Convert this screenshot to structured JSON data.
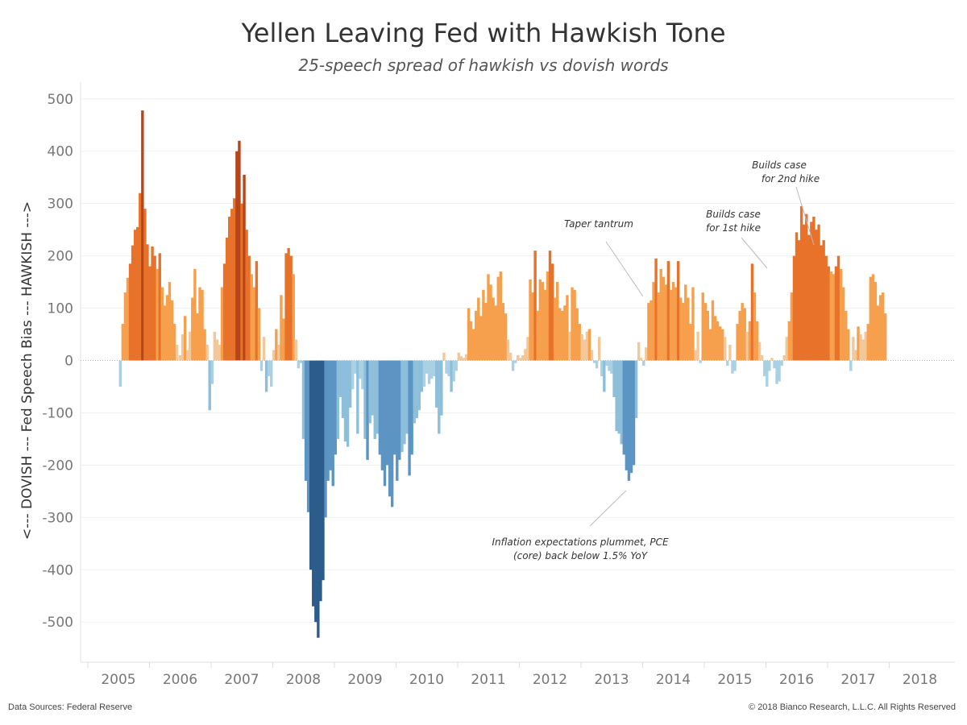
{
  "header": {
    "title": "Yellen Leaving Fed with Hawkish Tone",
    "subtitle": "25-speech spread of hawkish vs dovish words"
  },
  "footer": {
    "source": "Data Sources: Federal Reserve",
    "copyright": "© 2018 Bianco Research, L.L.C. All Rights Reserved"
  },
  "colors": {
    "hawkish_dark": "#b7451a",
    "hawkish_mid": "#e8722a",
    "hawkish_light": "#f6a04d",
    "hawkish_pale": "#f2c79a",
    "dovish_pale": "#a9d0e3",
    "dovish_light": "#8dbfda",
    "dovish_mid": "#5c94c4",
    "dovish_dark": "#2b5c8c"
  },
  "chart_data": {
    "type": "bar",
    "title": "Yellen Leaving Fed with Hawkish Tone",
    "subtitle": "25-speech spread of hawkish vs dovish words",
    "ylabel": "<--- DOVISH --- Fed Speech Bias --- HAWKISH --->",
    "xlabel": "",
    "ylim": [
      -580,
      500
    ],
    "xlim": [
      2004.7,
      2018.3
    ],
    "yticks": [
      500,
      400,
      300,
      200,
      100,
      0,
      -100,
      -200,
      -300,
      -400,
      -500
    ],
    "xticks": [
      2005,
      2006,
      2007,
      2008,
      2009,
      2010,
      2011,
      2012,
      2013,
      2014,
      2015,
      2016,
      2017,
      2018
    ],
    "grid": true,
    "legend": "none",
    "points": [
      [
        2005.03,
        -50
      ],
      [
        2005.07,
        70
      ],
      [
        2005.11,
        130
      ],
      [
        2005.15,
        158
      ],
      [
        2005.19,
        185
      ],
      [
        2005.23,
        220
      ],
      [
        2005.27,
        250
      ],
      [
        2005.31,
        255
      ],
      [
        2005.35,
        320
      ],
      [
        2005.39,
        478
      ],
      [
        2005.43,
        290
      ],
      [
        2005.47,
        222
      ],
      [
        2005.51,
        180
      ],
      [
        2005.55,
        218
      ],
      [
        2005.59,
        200
      ],
      [
        2005.63,
        175
      ],
      [
        2005.67,
        205
      ],
      [
        2005.71,
        140
      ],
      [
        2005.75,
        105
      ],
      [
        2005.79,
        125
      ],
      [
        2005.83,
        150
      ],
      [
        2005.87,
        115
      ],
      [
        2005.91,
        70
      ],
      [
        2005.95,
        30
      ],
      [
        2006.0,
        10
      ],
      [
        2006.04,
        50
      ],
      [
        2006.08,
        85
      ],
      [
        2006.12,
        20
      ],
      [
        2006.16,
        55
      ],
      [
        2006.2,
        120
      ],
      [
        2006.24,
        175
      ],
      [
        2006.28,
        90
      ],
      [
        2006.32,
        140
      ],
      [
        2006.36,
        135
      ],
      [
        2006.4,
        60
      ],
      [
        2006.44,
        30
      ],
      [
        2006.48,
        -95
      ],
      [
        2006.52,
        -45
      ],
      [
        2006.56,
        55
      ],
      [
        2006.6,
        40
      ],
      [
        2006.64,
        30
      ],
      [
        2006.68,
        140
      ],
      [
        2006.72,
        185
      ],
      [
        2006.76,
        235
      ],
      [
        2006.8,
        275
      ],
      [
        2006.84,
        290
      ],
      [
        2006.88,
        310
      ],
      [
        2006.92,
        400
      ],
      [
        2006.96,
        420
      ],
      [
        2007.0,
        300
      ],
      [
        2007.04,
        355
      ],
      [
        2007.08,
        250
      ],
      [
        2007.12,
        200
      ],
      [
        2007.16,
        165
      ],
      [
        2007.2,
        140
      ],
      [
        2007.24,
        190
      ],
      [
        2007.28,
        100
      ],
      [
        2007.32,
        -20
      ],
      [
        2007.36,
        45
      ],
      [
        2007.4,
        -60
      ],
      [
        2007.44,
        -30
      ],
      [
        2007.48,
        -50
      ],
      [
        2007.52,
        20
      ],
      [
        2007.56,
        60
      ],
      [
        2007.6,
        30
      ],
      [
        2007.64,
        125
      ],
      [
        2007.68,
        80
      ],
      [
        2007.72,
        205
      ],
      [
        2007.76,
        215
      ],
      [
        2007.8,
        200
      ],
      [
        2007.84,
        165
      ],
      [
        2007.88,
        40
      ],
      [
        2007.92,
        -15
      ],
      [
        2007.96,
        -5
      ],
      [
        2008.0,
        -150
      ],
      [
        2008.04,
        -230
      ],
      [
        2008.08,
        -290
      ],
      [
        2008.12,
        -400
      ],
      [
        2008.16,
        -470
      ],
      [
        2008.2,
        -500
      ],
      [
        2008.24,
        -530
      ],
      [
        2008.28,
        -460
      ],
      [
        2008.32,
        -420
      ],
      [
        2008.36,
        -300
      ],
      [
        2008.4,
        -230
      ],
      [
        2008.44,
        -210
      ],
      [
        2008.48,
        -240
      ],
      [
        2008.52,
        -180
      ],
      [
        2008.56,
        -150
      ],
      [
        2008.6,
        -70
      ],
      [
        2008.64,
        -110
      ],
      [
        2008.68,
        -155
      ],
      [
        2008.72,
        -165
      ],
      [
        2008.76,
        -90
      ],
      [
        2008.8,
        -55
      ],
      [
        2008.84,
        -25
      ],
      [
        2008.88,
        -140
      ],
      [
        2008.92,
        -35
      ],
      [
        2008.96,
        -55
      ],
      [
        2009.0,
        -150
      ],
      [
        2009.04,
        -190
      ],
      [
        2009.08,
        -120
      ],
      [
        2009.12,
        -105
      ],
      [
        2009.16,
        -150
      ],
      [
        2009.2,
        -140
      ],
      [
        2009.24,
        -180
      ],
      [
        2009.28,
        -210
      ],
      [
        2009.32,
        -240
      ],
      [
        2009.36,
        -200
      ],
      [
        2009.4,
        -260
      ],
      [
        2009.44,
        -280
      ],
      [
        2009.48,
        -180
      ],
      [
        2009.52,
        -230
      ],
      [
        2009.56,
        -190
      ],
      [
        2009.6,
        -175
      ],
      [
        2009.64,
        -160
      ],
      [
        2009.68,
        -140
      ],
      [
        2009.72,
        -220
      ],
      [
        2009.76,
        -180
      ],
      [
        2009.8,
        -120
      ],
      [
        2009.84,
        -110
      ],
      [
        2009.88,
        -95
      ],
      [
        2009.92,
        -60
      ],
      [
        2009.96,
        -50
      ],
      [
        2010.0,
        -25
      ],
      [
        2010.04,
        -45
      ],
      [
        2010.08,
        -35
      ],
      [
        2010.12,
        -30
      ],
      [
        2010.16,
        -90
      ],
      [
        2010.2,
        -140
      ],
      [
        2010.24,
        -105
      ],
      [
        2010.28,
        15
      ],
      [
        2010.32,
        -25
      ],
      [
        2010.36,
        -30
      ],
      [
        2010.4,
        -60
      ],
      [
        2010.44,
        -40
      ],
      [
        2010.48,
        -20
      ],
      [
        2010.52,
        15
      ],
      [
        2010.56,
        8
      ],
      [
        2010.6,
        5
      ],
      [
        2010.64,
        12
      ],
      [
        2010.68,
        100
      ],
      [
        2010.72,
        75
      ],
      [
        2010.76,
        60
      ],
      [
        2010.8,
        95
      ],
      [
        2010.84,
        120
      ],
      [
        2010.88,
        85
      ],
      [
        2010.92,
        135
      ],
      [
        2010.96,
        110
      ],
      [
        2011.0,
        165
      ],
      [
        2011.04,
        145
      ],
      [
        2011.08,
        120
      ],
      [
        2011.12,
        105
      ],
      [
        2011.16,
        160
      ],
      [
        2011.2,
        170
      ],
      [
        2011.24,
        110
      ],
      [
        2011.28,
        90
      ],
      [
        2011.32,
        40
      ],
      [
        2011.36,
        15
      ],
      [
        2011.4,
        -20
      ],
      [
        2011.44,
        -5
      ],
      [
        2011.48,
        10
      ],
      [
        2011.52,
        5
      ],
      [
        2011.56,
        10
      ],
      [
        2011.6,
        22
      ],
      [
        2011.64,
        45
      ],
      [
        2011.68,
        155
      ],
      [
        2011.72,
        130
      ],
      [
        2011.76,
        210
      ],
      [
        2011.8,
        95
      ],
      [
        2011.84,
        155
      ],
      [
        2011.88,
        150
      ],
      [
        2011.92,
        135
      ],
      [
        2011.96,
        170
      ],
      [
        2012.0,
        210
      ],
      [
        2012.04,
        185
      ],
      [
        2012.08,
        120
      ],
      [
        2012.12,
        150
      ],
      [
        2012.16,
        100
      ],
      [
        2012.2,
        95
      ],
      [
        2012.24,
        105
      ],
      [
        2012.28,
        125
      ],
      [
        2012.32,
        55
      ],
      [
        2012.36,
        140
      ],
      [
        2012.4,
        135
      ],
      [
        2012.44,
        100
      ],
      [
        2012.48,
        70
      ],
      [
        2012.52,
        50
      ],
      [
        2012.56,
        40
      ],
      [
        2012.6,
        55
      ],
      [
        2012.64,
        60
      ],
      [
        2012.68,
        20
      ],
      [
        2012.72,
        -5
      ],
      [
        2012.76,
        -15
      ],
      [
        2012.8,
        45
      ],
      [
        2012.84,
        -30
      ],
      [
        2012.88,
        -60
      ],
      [
        2012.92,
        -10
      ],
      [
        2012.96,
        -20
      ],
      [
        2013.0,
        -25
      ],
      [
        2013.04,
        -70
      ],
      [
        2013.08,
        -135
      ],
      [
        2013.12,
        -140
      ],
      [
        2013.16,
        -160
      ],
      [
        2013.2,
        -180
      ],
      [
        2013.24,
        -210
      ],
      [
        2013.28,
        -230
      ],
      [
        2013.32,
        -215
      ],
      [
        2013.36,
        -200
      ],
      [
        2013.4,
        -110
      ],
      [
        2013.44,
        35
      ],
      [
        2013.48,
        5
      ],
      [
        2013.52,
        -10
      ],
      [
        2013.56,
        25
      ],
      [
        2013.6,
        110
      ],
      [
        2013.64,
        115
      ],
      [
        2013.68,
        150
      ],
      [
        2013.72,
        195
      ],
      [
        2013.76,
        130
      ],
      [
        2013.8,
        175
      ],
      [
        2013.84,
        160
      ],
      [
        2013.88,
        145
      ],
      [
        2013.92,
        190
      ],
      [
        2013.96,
        135
      ],
      [
        2014.0,
        150
      ],
      [
        2014.04,
        140
      ],
      [
        2014.08,
        190
      ],
      [
        2014.12,
        120
      ],
      [
        2014.16,
        110
      ],
      [
        2014.2,
        145
      ],
      [
        2014.24,
        120
      ],
      [
        2014.28,
        70
      ],
      [
        2014.32,
        140
      ],
      [
        2014.36,
        20
      ],
      [
        2014.4,
        55
      ],
      [
        2014.44,
        -5
      ],
      [
        2014.48,
        130
      ],
      [
        2014.52,
        110
      ],
      [
        2014.56,
        95
      ],
      [
        2014.6,
        60
      ],
      [
        2014.64,
        115
      ],
      [
        2014.68,
        85
      ],
      [
        2014.72,
        75
      ],
      [
        2014.76,
        65
      ],
      [
        2014.8,
        60
      ],
      [
        2014.84,
        45
      ],
      [
        2014.88,
        -10
      ],
      [
        2014.92,
        30
      ],
      [
        2014.96,
        -25
      ],
      [
        2015.0,
        -20
      ],
      [
        2015.04,
        70
      ],
      [
        2015.08,
        95
      ],
      [
        2015.12,
        110
      ],
      [
        2015.16,
        100
      ],
      [
        2015.2,
        55
      ],
      [
        2015.24,
        75
      ],
      [
        2015.28,
        185
      ],
      [
        2015.32,
        130
      ],
      [
        2015.36,
        75
      ],
      [
        2015.4,
        35
      ],
      [
        2015.44,
        10
      ],
      [
        2015.48,
        -30
      ],
      [
        2015.52,
        -50
      ],
      [
        2015.56,
        -20
      ],
      [
        2015.6,
        5
      ],
      [
        2015.64,
        -15
      ],
      [
        2015.68,
        -45
      ],
      [
        2015.72,
        -40
      ],
      [
        2015.76,
        -10
      ],
      [
        2015.8,
        10
      ],
      [
        2015.84,
        45
      ],
      [
        2015.88,
        75
      ],
      [
        2015.92,
        130
      ],
      [
        2015.96,
        200
      ],
      [
        2016.0,
        245
      ],
      [
        2016.04,
        230
      ],
      [
        2016.08,
        295
      ],
      [
        2016.12,
        260
      ],
      [
        2016.16,
        280
      ],
      [
        2016.2,
        240
      ],
      [
        2016.24,
        265
      ],
      [
        2016.28,
        275
      ],
      [
        2016.32,
        250
      ],
      [
        2016.36,
        260
      ],
      [
        2016.4,
        220
      ],
      [
        2016.44,
        230
      ],
      [
        2016.48,
        200
      ],
      [
        2016.52,
        180
      ],
      [
        2016.56,
        170
      ],
      [
        2016.6,
        165
      ],
      [
        2016.64,
        180
      ],
      [
        2016.68,
        200
      ],
      [
        2016.72,
        175
      ],
      [
        2016.76,
        140
      ],
      [
        2016.8,
        95
      ],
      [
        2016.84,
        60
      ],
      [
        2016.88,
        -20
      ],
      [
        2016.92,
        45
      ],
      [
        2016.96,
        20
      ],
      [
        2017.0,
        65
      ],
      [
        2017.04,
        50
      ],
      [
        2017.08,
        40
      ],
      [
        2017.12,
        55
      ],
      [
        2017.16,
        70
      ],
      [
        2017.2,
        160
      ],
      [
        2017.24,
        165
      ],
      [
        2017.28,
        150
      ],
      [
        2017.32,
        105
      ],
      [
        2017.36,
        125
      ],
      [
        2017.4,
        130
      ],
      [
        2017.44,
        90
      ]
    ]
  }
}
